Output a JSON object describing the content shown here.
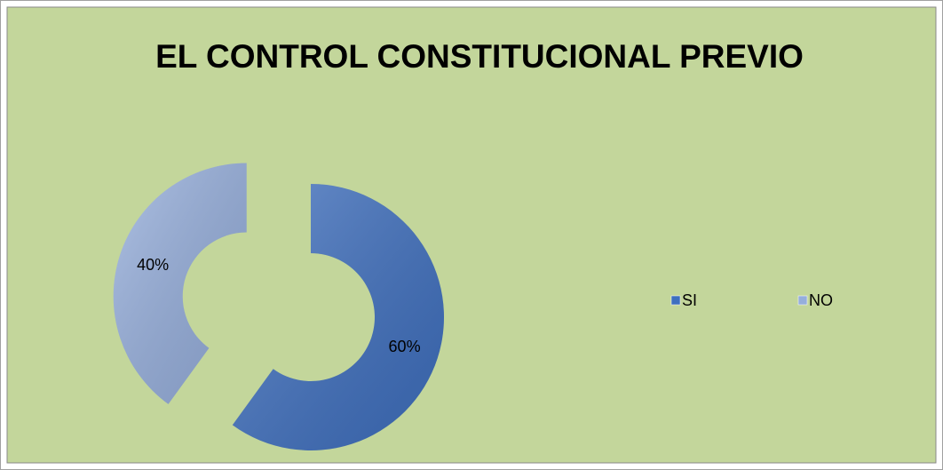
{
  "chart_data": {
    "type": "doughnut",
    "title": "EL CONTROL CONSTITUCIONAL PREVIO",
    "categories": [
      "SI",
      "NO"
    ],
    "values": [
      60,
      40
    ],
    "value_labels": [
      "60%",
      "40%"
    ],
    "colors": [
      "#3e6fbf",
      "#95aedc"
    ],
    "legend": "right"
  }
}
